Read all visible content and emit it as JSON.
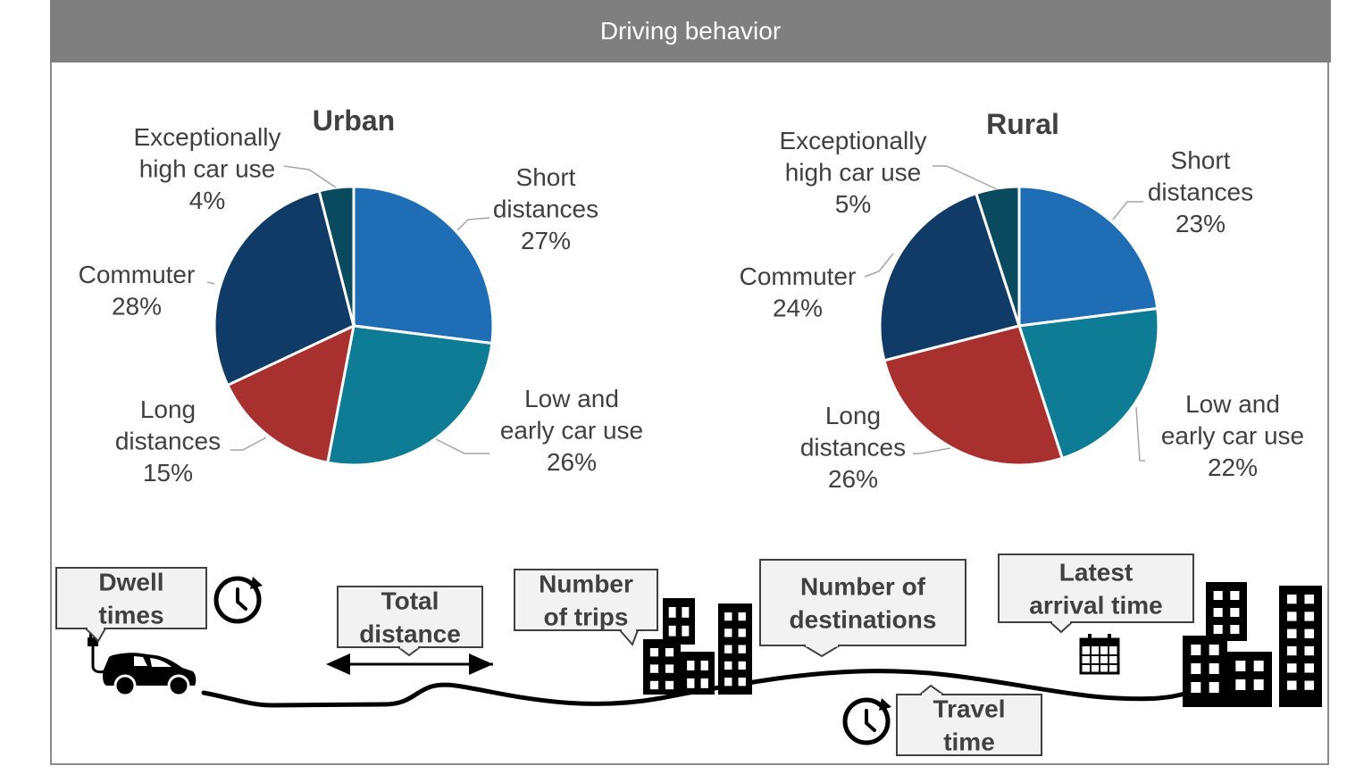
{
  "banner": {
    "title": "Driving behavior"
  },
  "colors": {
    "short_distances": "#1f6db5",
    "low_and_early": "#0f7c96",
    "long_distances": "#a8312f",
    "commuter": "#0f3b66",
    "exceptional": "#0a4a5e"
  },
  "chart_data": [
    {
      "type": "pie",
      "title": "Urban",
      "slices": [
        {
          "key": "short_distances",
          "label_lines": [
            "Short",
            "distances"
          ],
          "value": 27,
          "value_label": "27%"
        },
        {
          "key": "low_and_early",
          "label_lines": [
            "Low and",
            "early car use"
          ],
          "value": 26,
          "value_label": "26%"
        },
        {
          "key": "long_distances",
          "label_lines": [
            "Long",
            "distances"
          ],
          "value": 15,
          "value_label": "15%"
        },
        {
          "key": "commuter",
          "label_lines": [
            "Commuter"
          ],
          "value": 28,
          "value_label": "28%"
        },
        {
          "key": "exceptional",
          "label_lines": [
            "Exceptionally",
            "high car use"
          ],
          "value": 4,
          "value_label": "4%"
        }
      ]
    },
    {
      "type": "pie",
      "title": "Rural",
      "slices": [
        {
          "key": "short_distances",
          "label_lines": [
            "Short",
            "distances"
          ],
          "value": 23,
          "value_label": "23%"
        },
        {
          "key": "low_and_early",
          "label_lines": [
            "Low and",
            "early car use"
          ],
          "value": 22,
          "value_label": "22%"
        },
        {
          "key": "long_distances",
          "label_lines": [
            "Long",
            "distances"
          ],
          "value": 26,
          "value_label": "26%"
        },
        {
          "key": "commuter",
          "label_lines": [
            "Commuter"
          ],
          "value": 24,
          "value_label": "24%"
        },
        {
          "key": "exceptional",
          "label_lines": [
            "Exceptionally",
            "high car use"
          ],
          "value": 5,
          "value_label": "5%"
        }
      ]
    }
  ],
  "callouts": {
    "dwell_times": [
      "Dwell",
      "times"
    ],
    "total_distance": [
      "Total",
      "distance"
    ],
    "number_of_trips": [
      "Number",
      "of trips"
    ],
    "number_of_destinations": [
      "Number of",
      "destinations"
    ],
    "latest_arrival_time": [
      "Latest",
      "arrival time"
    ],
    "travel_time": [
      "Travel",
      "time"
    ]
  },
  "icons": [
    "car-icon",
    "charging-plug-icon",
    "clock-icon",
    "calendar-icon",
    "building-icon",
    "double-arrow-icon"
  ]
}
